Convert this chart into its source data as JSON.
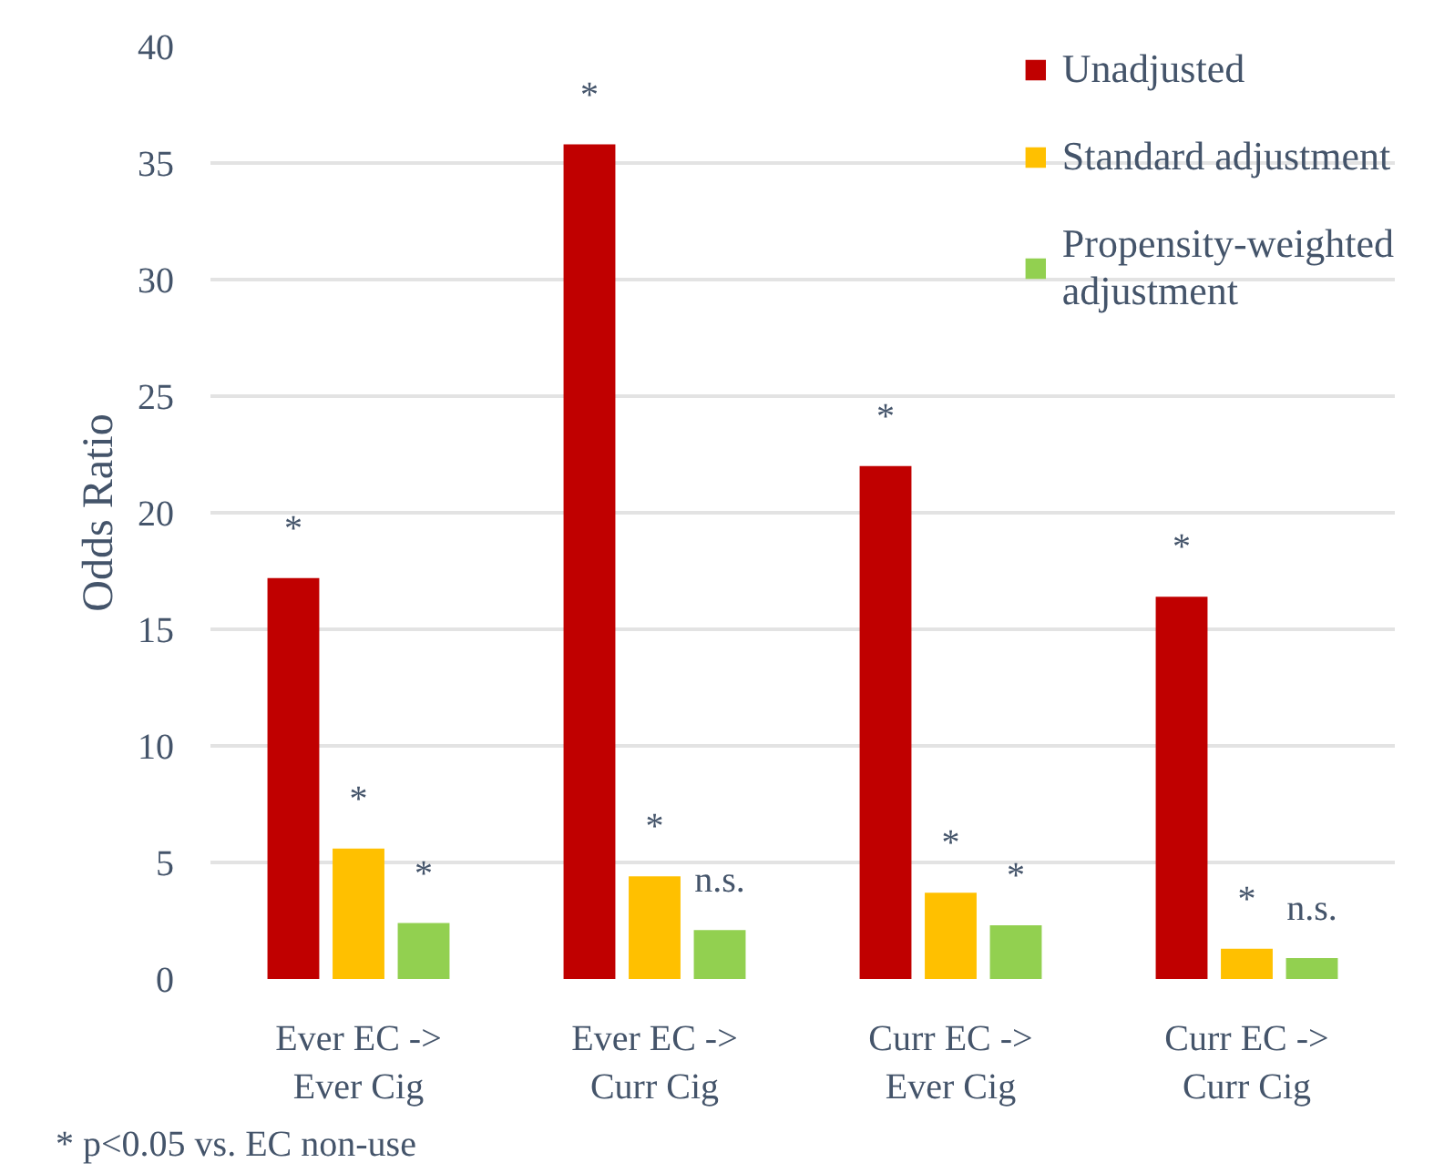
{
  "chart_data": {
    "type": "bar",
    "ylabel": "Odds Ratio",
    "categories": [
      "Ever EC ->\nEver Cig",
      "Ever EC ->\nCurr Cig",
      "Curr EC ->\nEver Cig",
      "Curr EC ->\nCurr Cig"
    ],
    "series": [
      {
        "name": "Unadjusted",
        "color": "#c00000",
        "values": [
          17.2,
          35.8,
          22.0,
          16.4
        ],
        "value_labels": [
          "*",
          "*",
          "*",
          "*"
        ]
      },
      {
        "name": "Standard adjustment",
        "color": "#ffc000",
        "values": [
          5.6,
          4.4,
          3.7,
          1.3
        ],
        "value_labels": [
          "*",
          "*",
          "*",
          "*"
        ]
      },
      {
        "name": "Propensity-weighted adjustment",
        "color": "#92d050",
        "values": [
          2.4,
          2.1,
          2.3,
          0.9
        ],
        "value_labels": [
          "*",
          "n.s.",
          "*",
          "n.s."
        ]
      }
    ],
    "ylim": [
      0,
      40
    ],
    "yticks": [
      0,
      5,
      10,
      15,
      20,
      25,
      30,
      35,
      40
    ],
    "grid": "y",
    "legend": "top right",
    "annotations": [
      "* p<0.05 vs. EC non-use"
    ]
  }
}
